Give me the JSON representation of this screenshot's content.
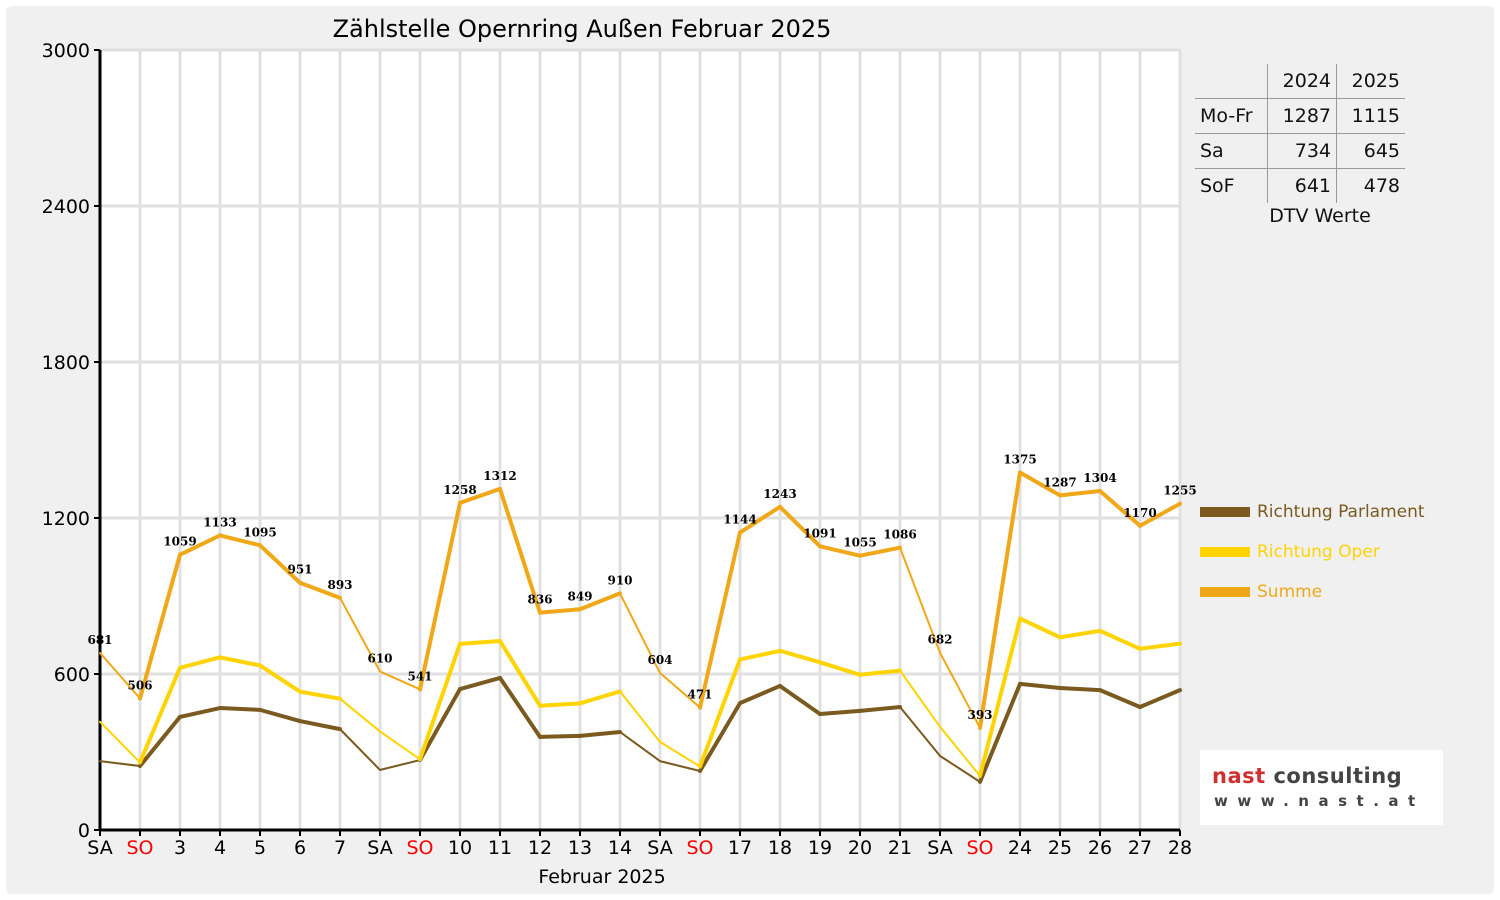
{
  "chart_data": {
    "type": "line",
    "title": "Zählstelle Opernring Außen Februar 2025",
    "xlabel": "Februar 2025",
    "ylabel": "",
    "ylim": [
      0,
      3000
    ],
    "yticks": [
      0,
      600,
      1200,
      1800,
      2400,
      3000
    ],
    "grid": true,
    "legend_position": "right",
    "categories": [
      "SA",
      "SO",
      "3",
      "4",
      "5",
      "6",
      "7",
      "SA",
      "SO",
      "10",
      "11",
      "12",
      "13",
      "14",
      "SA",
      "SO",
      "17",
      "18",
      "19",
      "20",
      "21",
      "SA",
      "SO",
      "24",
      "25",
      "26",
      "27",
      "28"
    ],
    "series": [
      {
        "name": "Richtung Parlament",
        "color": "#7a5a1e",
        "values": [
          265,
          246,
          435,
          469,
          462,
          419,
          388,
          231,
          269,
          542,
          585,
          358,
          362,
          377,
          265,
          227,
          488,
          554,
          446,
          458,
          473,
          285,
          185,
          562,
          546,
          538,
          473,
          538
        ]
      },
      {
        "name": "Richtung Oper",
        "color": "#ffd400",
        "values": [
          416,
          260,
          624,
          664,
          633,
          532,
          505,
          379,
          272,
          716,
          727,
          478,
          487,
          533,
          339,
          244,
          656,
          689,
          645,
          597,
          613,
          397,
          208,
          813,
          741,
          766,
          697,
          717
        ]
      },
      {
        "name": "Summe",
        "color": "#f0a818",
        "values": [
          681,
          506,
          1059,
          1133,
          1095,
          951,
          893,
          610,
          541,
          1258,
          1312,
          836,
          849,
          910,
          604,
          471,
          1144,
          1243,
          1091,
          1055,
          1086,
          682,
          393,
          1375,
          1287,
          1304,
          1170,
          1255
        ]
      }
    ],
    "colors": {
      "weekend_label": "#ff0000",
      "axis": "#000000",
      "grid": "#e0e0e0"
    }
  },
  "dtv": {
    "headers": [
      "",
      "2024",
      "2025"
    ],
    "rows": [
      [
        "Mo-Fr",
        "1287",
        "1115"
      ],
      [
        "Sa",
        "734",
        "645"
      ],
      [
        "SoF",
        "641",
        "478"
      ]
    ],
    "caption": "DTV Werte"
  },
  "logo": {
    "brand": "nast",
    "word": "consulting",
    "url": "www.nast.at"
  }
}
